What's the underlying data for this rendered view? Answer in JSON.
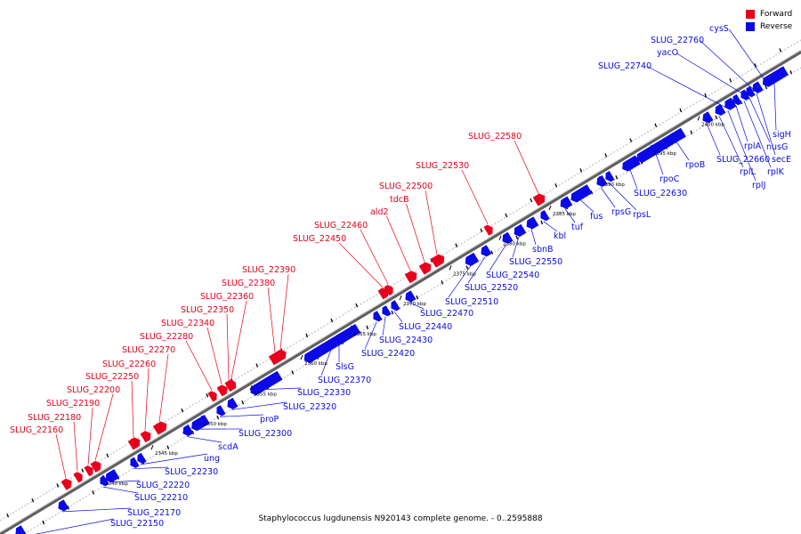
{
  "legend": {
    "forward_label": "Forward",
    "reverse_label": "Reverse",
    "forward_color": "#e8001c",
    "reverse_color": "#0a0ae6"
  },
  "caption": "Staphylococcus lugdunensis N920143 complete genome. - 0..2595888",
  "scale_labels": [
    "2340 kbp",
    "2345 kbp",
    "2350 kbp",
    "2355 kbp",
    "2360 kbp",
    "2365 kbp",
    "2370 kbp",
    "2375 kbp",
    "2380 kbp",
    "2385 kbp",
    "2390 kbp",
    "2395 kbp",
    "2400 kbp"
  ],
  "forward_genes": [
    "SLUG_22160",
    "SLUG_22180",
    "SLUG_22190",
    "SLUG_22200",
    "SLUG_22250",
    "SLUG_22260",
    "SLUG_22270",
    "SLUG_22280",
    "SLUG_22340",
    "SLUG_22350",
    "SLUG_22360",
    "SLUG_22380",
    "SLUG_22390",
    "SLUG_22450",
    "SLUG_22460",
    "ald2",
    "tdcB",
    "SLUG_22500",
    "SLUG_22530",
    "SLUG_22580"
  ],
  "reverse_genes": [
    "SLUG_22150",
    "SLUG_22170",
    "SLUG_22210",
    "SLUG_22220",
    "SLUG_22230",
    "ung",
    "scdA",
    "SLUG_22300",
    "proP",
    "SLUG_22320",
    "SLUG_22330",
    "SLUG_22370",
    "SlsG",
    "SLUG_22420",
    "SLUG_22430",
    "SLUG_22440",
    "SLUG_22470",
    "SLUG_22510",
    "SLUG_22520",
    "SLUG_22540",
    "SLUG_22550",
    "sbnB",
    "kbl",
    "tuf",
    "fus",
    "rpsG",
    "rpsL",
    "SLUG_22630",
    "rpoC",
    "rpoB",
    "SLUG_22660",
    "rplL",
    "rplJ",
    "rplA",
    "rplK",
    "nusG",
    "secE",
    "sigH",
    "SLUG_22740",
    "yacO",
    "SLUG_22760",
    "cysS"
  ]
}
